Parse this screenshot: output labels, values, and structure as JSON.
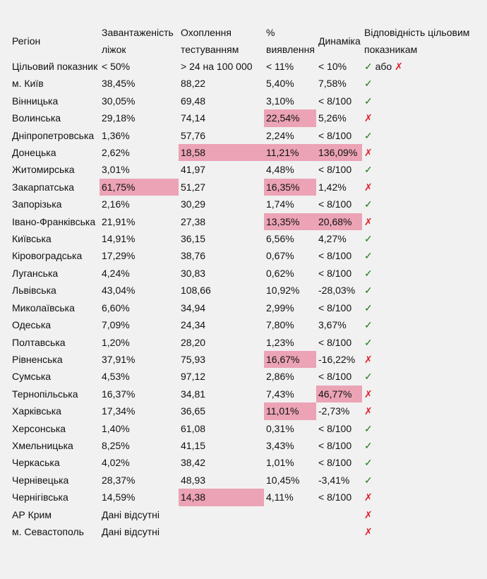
{
  "header": [
    "Регіон",
    "Завантаженість ліжок",
    "Охоплення тестуванням",
    "% виявлення",
    "Динаміка",
    "Відповідність цільовим показникам"
  ],
  "target": {
    "label": "Цільовий показник",
    "bed": "< 50%",
    "test": "> 24 на 100 000",
    "pct": "< 11%",
    "dyn": "< 10%",
    "ok_mark": "✓",
    "or": "або",
    "bad_mark": "✗"
  },
  "colors": {
    "highlight": "#eba3b5",
    "ok": "#1a7a1a",
    "bad": "#e0202a",
    "background": "#f1f1f1"
  },
  "rows": [
    {
      "region": "м. Київ",
      "bed": "38,45%",
      "test": "88,22",
      "pct": "5,40%",
      "dyn": "7,58%",
      "mark": "✓",
      "hl": []
    },
    {
      "region": "Вінницька",
      "bed": "30,05%",
      "test": "69,48",
      "pct": "3,10%",
      "dyn": "< 8/100",
      "mark": "✓",
      "hl": []
    },
    {
      "region": "Волинська",
      "bed": "29,18%",
      "test": "74,14",
      "pct": "22,54%",
      "dyn": "5,26%",
      "mark": "✗",
      "hl": [
        "pct"
      ]
    },
    {
      "region": "Дніпропетровська",
      "bed": "1,36%",
      "test": "57,76",
      "pct": "2,24%",
      "dyn": "< 8/100",
      "mark": "✓",
      "hl": []
    },
    {
      "region": "Донецька",
      "bed": "2,62%",
      "test": "18,58",
      "pct": "11,21%",
      "dyn": "136,09%",
      "mark": "✗",
      "hl": [
        "test",
        "pct",
        "dyn"
      ]
    },
    {
      "region": "Житомирська",
      "bed": "3,01%",
      "test": "41,97",
      "pct": "4,48%",
      "dyn": "< 8/100",
      "mark": "✓",
      "hl": []
    },
    {
      "region": "Закарпатська",
      "bed": "61,75%",
      "test": "51,27",
      "pct": "16,35%",
      "dyn": "1,42%",
      "mark": "✗",
      "hl": [
        "bed",
        "pct"
      ]
    },
    {
      "region": "Запорізька",
      "bed": "2,16%",
      "test": "30,29",
      "pct": "1,74%",
      "dyn": "< 8/100",
      "mark": "✓",
      "hl": []
    },
    {
      "region": "Івано-Франківська",
      "bed": "21,91%",
      "test": "27,38",
      "pct": "13,35%",
      "dyn": "20,68%",
      "mark": "✗",
      "hl": [
        "pct",
        "dyn"
      ]
    },
    {
      "region": "Київська",
      "bed": "14,91%",
      "test": "36,15",
      "pct": "6,56%",
      "dyn": "4,27%",
      "mark": "✓",
      "hl": []
    },
    {
      "region": "Кіровоградська",
      "bed": "17,29%",
      "test": "38,76",
      "pct": "0,67%",
      "dyn": "< 8/100",
      "mark": "✓",
      "hl": []
    },
    {
      "region": "Луганська",
      "bed": "4,24%",
      "test": "30,83",
      "pct": "0,62%",
      "dyn": "< 8/100",
      "mark": "✓",
      "hl": []
    },
    {
      "region": "Львівська",
      "bed": "43,04%",
      "test": "108,66",
      "pct": "10,92%",
      "dyn": "-28,03%",
      "mark": "✓",
      "hl": []
    },
    {
      "region": "Миколаївська",
      "bed": "6,60%",
      "test": "34,94",
      "pct": "2,99%",
      "dyn": "< 8/100",
      "mark": "✓",
      "hl": []
    },
    {
      "region": "Одеська",
      "bed": "7,09%",
      "test": "24,34",
      "pct": "7,80%",
      "dyn": "3,67%",
      "mark": "✓",
      "hl": []
    },
    {
      "region": "Полтавська",
      "bed": "1,20%",
      "test": "28,20",
      "pct": "1,23%",
      "dyn": "< 8/100",
      "mark": "✓",
      "hl": []
    },
    {
      "region": "Рівненська",
      "bed": "37,91%",
      "test": "75,93",
      "pct": "16,67%",
      "dyn": "-16,22%",
      "mark": "✗",
      "hl": [
        "pct"
      ]
    },
    {
      "region": "Сумська",
      "bed": "4,53%",
      "test": "97,12",
      "pct": "2,86%",
      "dyn": "< 8/100",
      "mark": "✓",
      "hl": []
    },
    {
      "region": "Тернопільська",
      "bed": "16,37%",
      "test": "34,81",
      "pct": "7,43%",
      "dyn": "46,77%",
      "mark": "✗",
      "hl": [
        "dyn"
      ]
    },
    {
      "region": "Харківська",
      "bed": "17,34%",
      "test": "36,65",
      "pct": "11,01%",
      "dyn": "-2,73%",
      "mark": "✗",
      "hl": [
        "pct"
      ]
    },
    {
      "region": "Херсонська",
      "bed": "1,40%",
      "test": "61,08",
      "pct": "0,31%",
      "dyn": "< 8/100",
      "mark": "✓",
      "hl": []
    },
    {
      "region": "Хмельницька",
      "bed": "8,25%",
      "test": "41,15",
      "pct": "3,43%",
      "dyn": "< 8/100",
      "mark": "✓",
      "hl": []
    },
    {
      "region": "Черкаська",
      "bed": "4,02%",
      "test": "38,42",
      "pct": "1,01%",
      "dyn": "< 8/100",
      "mark": "✓",
      "hl": []
    },
    {
      "region": "Чернівецька",
      "bed": "28,37%",
      "test": "48,93",
      "pct": "10,45%",
      "dyn": "-3,41%",
      "mark": "✓",
      "hl": []
    },
    {
      "region": "Чернігівська",
      "bed": "14,59%",
      "test": "14,38",
      "pct": "4,11%",
      "dyn": "< 8/100",
      "mark": "✗",
      "hl": [
        "test"
      ]
    },
    {
      "region": "АР Крим",
      "bed": "Дані відсутні",
      "test": "",
      "pct": "",
      "dyn": "",
      "mark": "✗",
      "hl": []
    },
    {
      "region": "м. Севастополь",
      "bed": "Дані відсутні",
      "test": "",
      "pct": "",
      "dyn": "",
      "mark": "✗",
      "hl": []
    }
  ]
}
